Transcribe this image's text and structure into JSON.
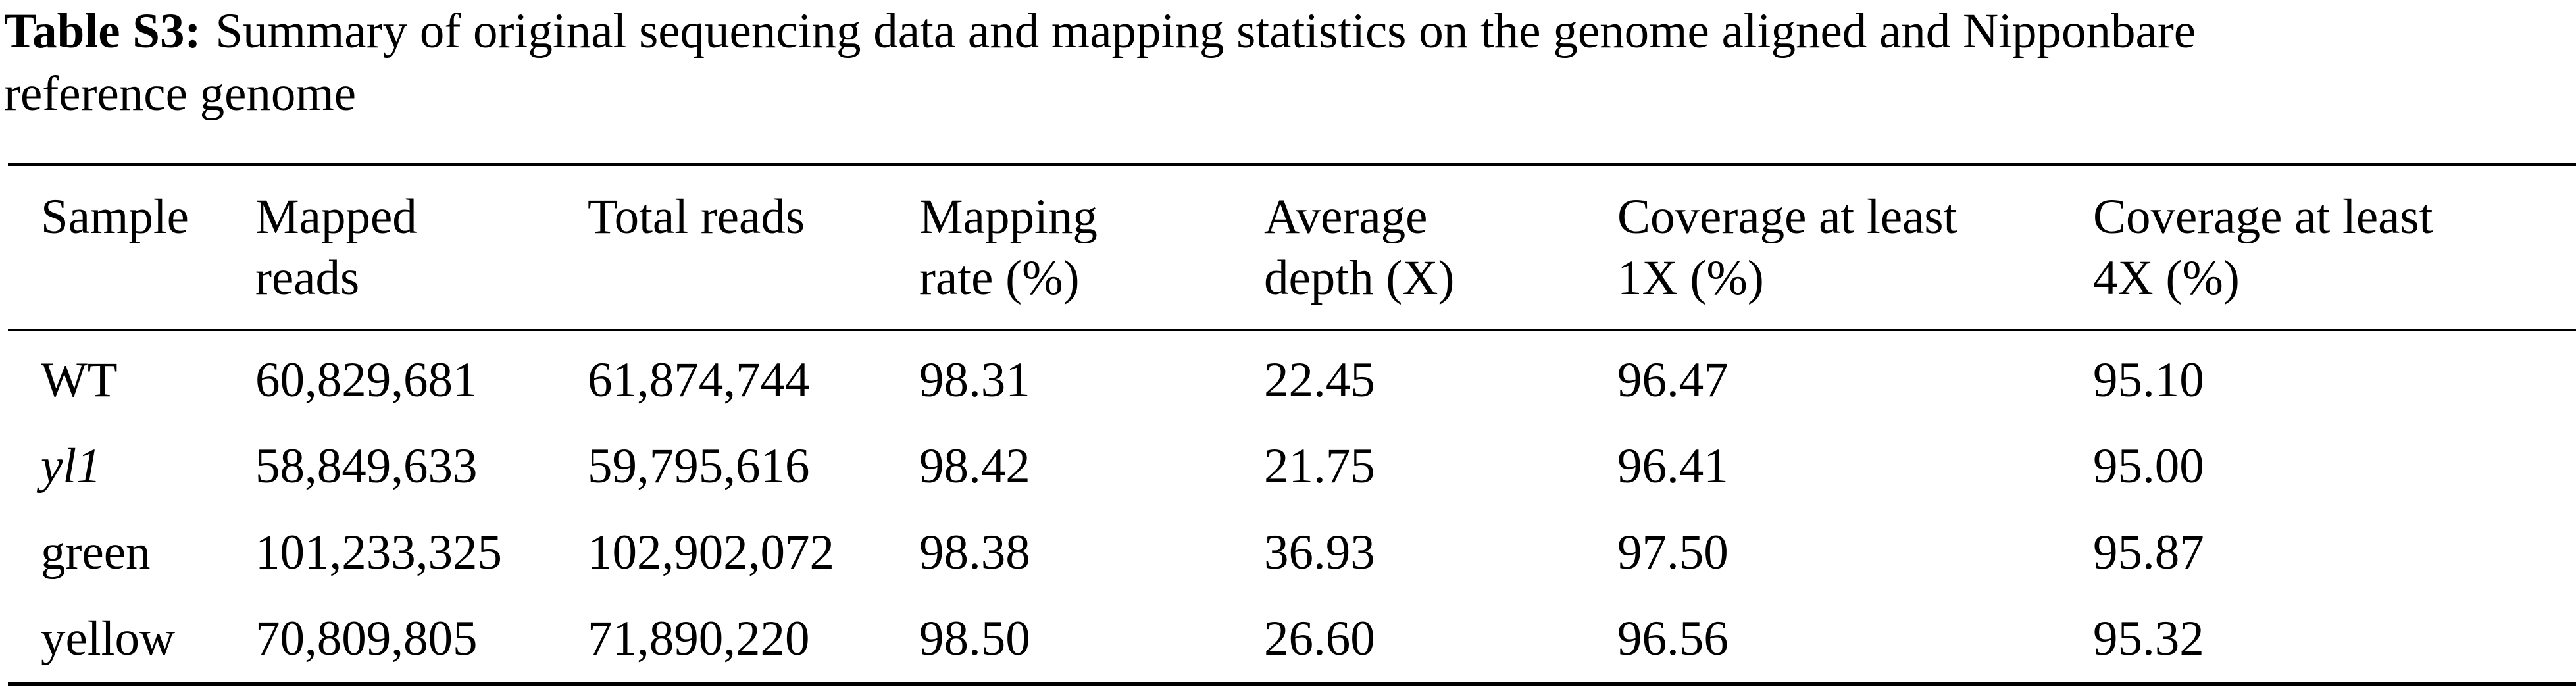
{
  "caption": {
    "label": "Table S3:",
    "line1": "Summary of original sequencing data and mapping statistics on the genome aligned and Nipponbare",
    "line2": "reference genome"
  },
  "table": {
    "headers": [
      {
        "line1": "Sample",
        "line2": ""
      },
      {
        "line1": "Mapped",
        "line2": "reads"
      },
      {
        "line1": "Total reads",
        "line2": ""
      },
      {
        "line1": "Mapping",
        "line2": "rate (%)"
      },
      {
        "line1": "Average",
        "line2": "depth (X)"
      },
      {
        "line1": "Coverage at least",
        "line2": "1X (%)"
      },
      {
        "line1": "Coverage at least",
        "line2": "4X (%)"
      }
    ],
    "rows": [
      {
        "sample": "WT",
        "mapped": "60,829,681",
        "total": "61,874,744",
        "rate": "98.31",
        "depth": "22.45",
        "cov1x": "96.47",
        "cov4x": "95.10"
      },
      {
        "sample": "yl1",
        "mapped": "58,849,633",
        "total": "59,795,616",
        "rate": "98.42",
        "depth": "21.75",
        "cov1x": "96.41",
        "cov4x": "95.00"
      },
      {
        "sample": "green",
        "mapped": "101,233,325",
        "total": "102,902,072",
        "rate": "98.38",
        "depth": "36.93",
        "cov1x": "97.50",
        "cov4x": "95.87"
      },
      {
        "sample": "yellow",
        "mapped": "70,809,805",
        "total": "71,890,220",
        "rate": "98.50",
        "depth": "26.60",
        "cov1x": "96.56",
        "cov4x": "95.32"
      }
    ]
  }
}
